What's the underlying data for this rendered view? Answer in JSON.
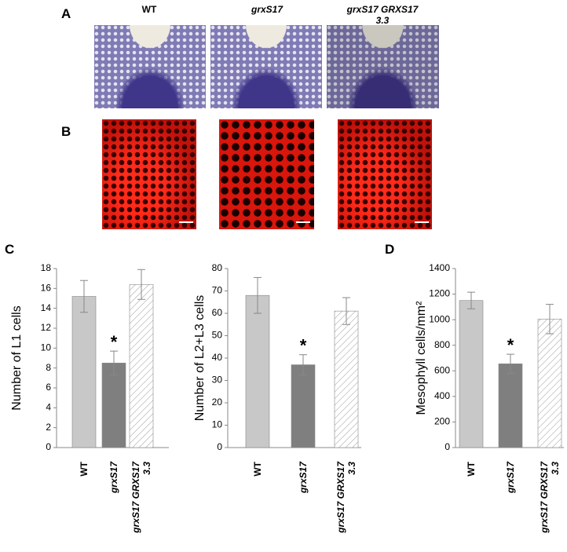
{
  "panels": {
    "A": {
      "label": "A",
      "columns": [
        "WT",
        "grxS17",
        "grxS17 GRXS17\n3.3"
      ]
    },
    "B": {
      "label": "B"
    },
    "C": {
      "label": "C"
    },
    "D": {
      "label": "D"
    }
  },
  "chart_data": [
    {
      "type": "bar",
      "y_label": "Number of L1 cells",
      "categories": [
        "WT",
        "grxS17",
        "grxS17 GRXS17\n3.3"
      ],
      "values": [
        15.2,
        8.5,
        16.4
      ],
      "errors": [
        1.6,
        1.2,
        1.5
      ],
      "colors": [
        "#c8c8c8",
        "#7f7f7f",
        "#ffffff"
      ],
      "patterns": [
        "solid",
        "solid",
        "hatched"
      ],
      "ylim": [
        0,
        18
      ],
      "yticks": [
        0,
        2,
        4,
        6,
        8,
        10,
        12,
        14,
        16,
        18
      ],
      "annotations": [
        {
          "label": "*",
          "category": "grxS17"
        }
      ]
    },
    {
      "type": "bar",
      "y_label": "Number of L2+L3 cells",
      "categories": [
        "WT",
        "grxS17",
        "grxS17 GRXS17\n3.3"
      ],
      "values": [
        68,
        37,
        61
      ],
      "errors": [
        8,
        4.5,
        6
      ],
      "colors": [
        "#c8c8c8",
        "#7f7f7f",
        "#ffffff"
      ],
      "patterns": [
        "solid",
        "solid",
        "hatched"
      ],
      "ylim": [
        0,
        80
      ],
      "yticks": [
        0,
        10,
        20,
        30,
        40,
        50,
        60,
        70,
        80
      ],
      "annotations": [
        {
          "label": "*",
          "category": "grxS17"
        }
      ]
    },
    {
      "type": "bar",
      "y_label": "Mesophyll cells/mm²",
      "categories": [
        "WT",
        "grxS17",
        "grxS17 GRXS17\n3.3"
      ],
      "values": [
        1150,
        655,
        1005
      ],
      "errors": [
        65,
        75,
        115
      ],
      "colors": [
        "#c8c8c8",
        "#7f7f7f",
        "#ffffff"
      ],
      "patterns": [
        "solid",
        "solid",
        "hatched"
      ],
      "ylim": [
        0,
        1400
      ],
      "yticks": [
        0,
        200,
        400,
        600,
        800,
        1000,
        1200,
        1400
      ],
      "annotations": [
        {
          "label": "*",
          "category": "grxS17"
        }
      ]
    }
  ]
}
